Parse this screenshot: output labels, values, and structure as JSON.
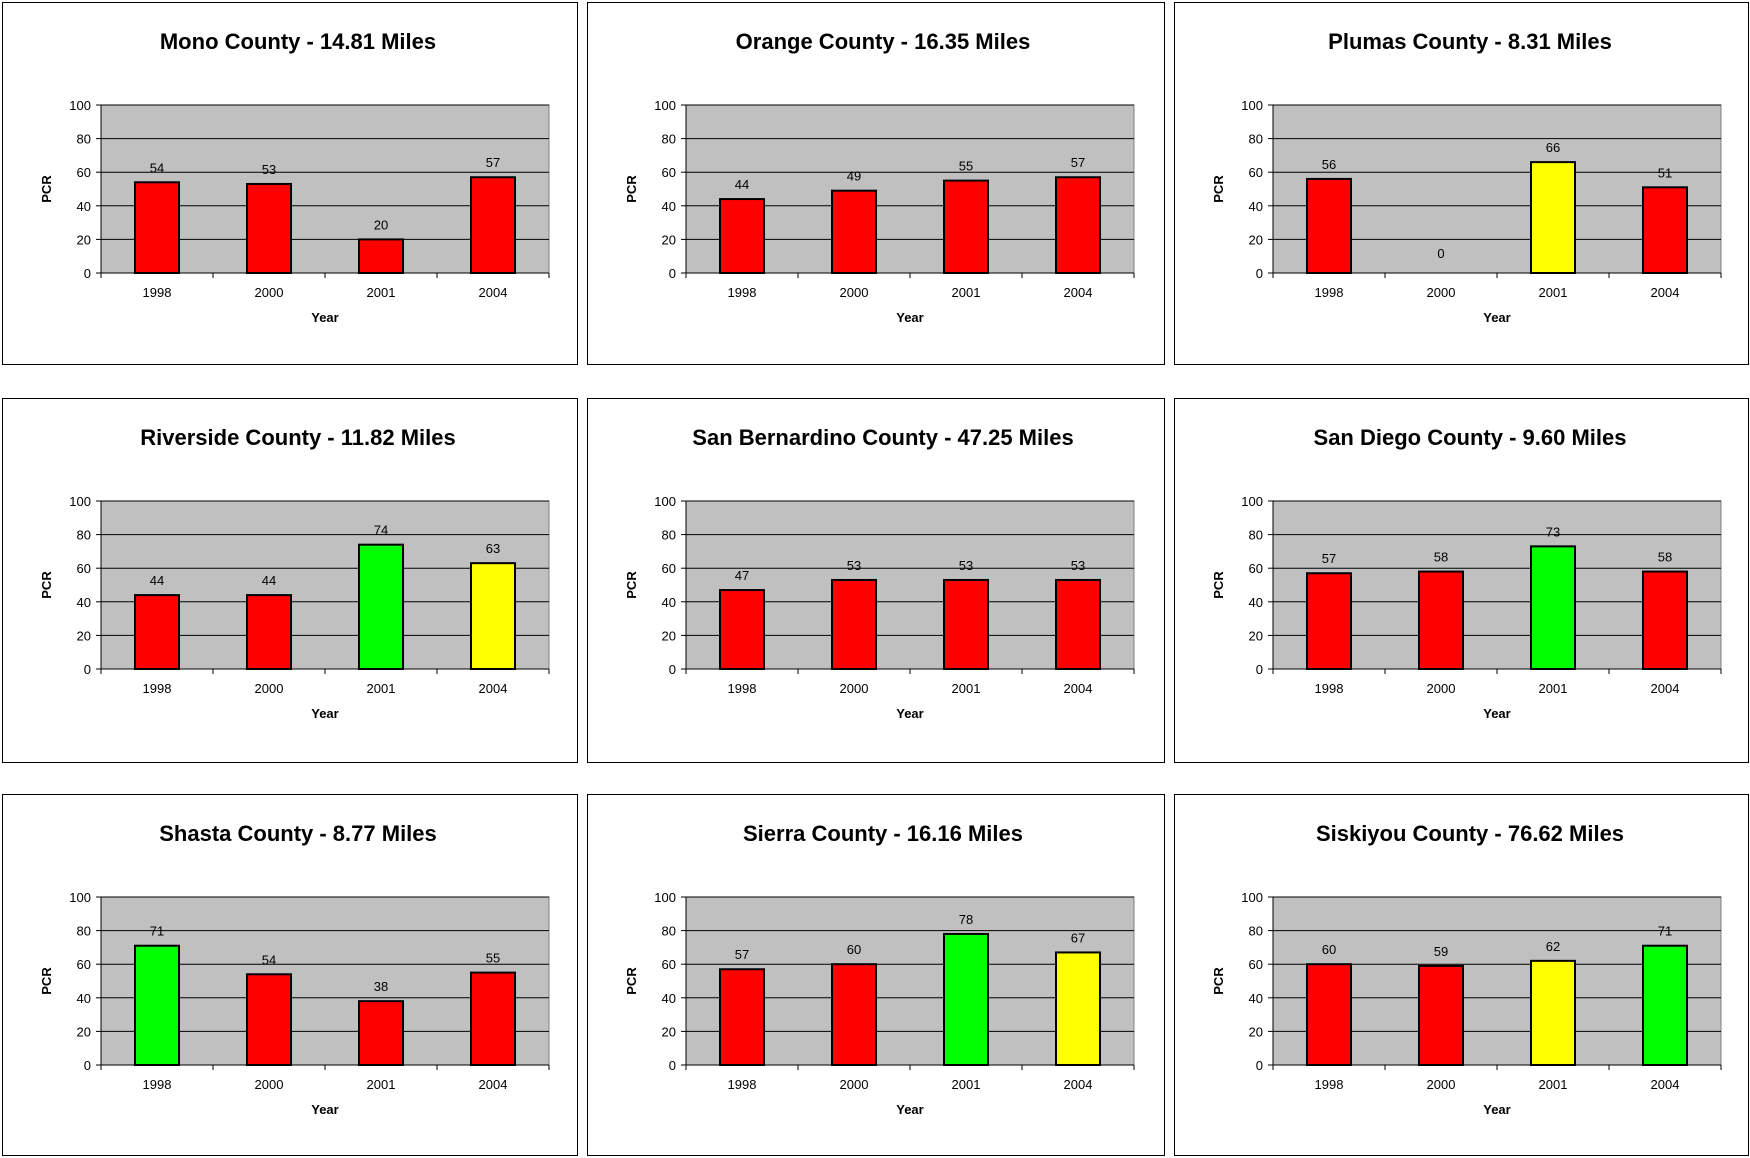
{
  "colors": {
    "red": "#ff0000",
    "green": "#00ff00",
    "yellow": "#ffff00",
    "plot_area": "#c0c0c0"
  },
  "chart_data": [
    {
      "type": "bar",
      "title": "Mono County - 14.81 Miles",
      "categories": [
        "1998",
        "2000",
        "2001",
        "2004"
      ],
      "values": [
        54,
        53,
        20,
        57
      ],
      "bar_colors": [
        "red",
        "red",
        "red",
        "red"
      ],
      "xlabel": "Year",
      "ylabel": "PCR",
      "ylim": [
        0,
        100
      ],
      "yticks": [
        0,
        20,
        40,
        60,
        80,
        100
      ],
      "grid": true
    },
    {
      "type": "bar",
      "title": "Orange County - 16.35 Miles",
      "categories": [
        "1998",
        "2000",
        "2001",
        "2004"
      ],
      "values": [
        44,
        49,
        55,
        57
      ],
      "bar_colors": [
        "red",
        "red",
        "red",
        "red"
      ],
      "xlabel": "Year",
      "ylabel": "PCR",
      "ylim": [
        0,
        100
      ],
      "yticks": [
        0,
        20,
        40,
        60,
        80,
        100
      ],
      "grid": true
    },
    {
      "type": "bar",
      "title": "Plumas County - 8.31 Miles",
      "categories": [
        "1998",
        "2000",
        "2001",
        "2004"
      ],
      "values": [
        56,
        0,
        66,
        51
      ],
      "bar_colors": [
        "red",
        "red",
        "yellow",
        "red"
      ],
      "xlabel": "Year",
      "ylabel": "PCR",
      "ylim": [
        0,
        100
      ],
      "yticks": [
        0,
        20,
        40,
        60,
        80,
        100
      ],
      "grid": true
    },
    {
      "type": "bar",
      "title": "Riverside County - 11.82 Miles",
      "categories": [
        "1998",
        "2000",
        "2001",
        "2004"
      ],
      "values": [
        44,
        44,
        74,
        63
      ],
      "bar_colors": [
        "red",
        "red",
        "green",
        "yellow"
      ],
      "xlabel": "Year",
      "ylabel": "PCR",
      "ylim": [
        0,
        100
      ],
      "yticks": [
        0,
        20,
        40,
        60,
        80,
        100
      ],
      "grid": true
    },
    {
      "type": "bar",
      "title": "San Bernardino County - 47.25 Miles",
      "categories": [
        "1998",
        "2000",
        "2001",
        "2004"
      ],
      "values": [
        47,
        53,
        53,
        53
      ],
      "bar_colors": [
        "red",
        "red",
        "red",
        "red"
      ],
      "xlabel": "Year",
      "ylabel": "PCR",
      "ylim": [
        0,
        100
      ],
      "yticks": [
        0,
        20,
        40,
        60,
        80,
        100
      ],
      "grid": true
    },
    {
      "type": "bar",
      "title": "San Diego County - 9.60 Miles",
      "categories": [
        "1998",
        "2000",
        "2001",
        "2004"
      ],
      "values": [
        57,
        58,
        73,
        58
      ],
      "bar_colors": [
        "red",
        "red",
        "green",
        "red"
      ],
      "xlabel": "Year",
      "ylabel": "PCR",
      "ylim": [
        0,
        100
      ],
      "yticks": [
        0,
        20,
        40,
        60,
        80,
        100
      ],
      "grid": true
    },
    {
      "type": "bar",
      "title": "Shasta County - 8.77 Miles",
      "categories": [
        "1998",
        "2000",
        "2001",
        "2004"
      ],
      "values": [
        71,
        54,
        38,
        55
      ],
      "bar_colors": [
        "green",
        "red",
        "red",
        "red"
      ],
      "xlabel": "Year",
      "ylabel": "PCR",
      "ylim": [
        0,
        100
      ],
      "yticks": [
        0,
        20,
        40,
        60,
        80,
        100
      ],
      "grid": true
    },
    {
      "type": "bar",
      "title": "Sierra County - 16.16 Miles",
      "categories": [
        "1998",
        "2000",
        "2001",
        "2004"
      ],
      "values": [
        57,
        60,
        78,
        67
      ],
      "bar_colors": [
        "red",
        "red",
        "green",
        "yellow"
      ],
      "xlabel": "Year",
      "ylabel": "PCR",
      "ylim": [
        0,
        100
      ],
      "yticks": [
        0,
        20,
        40,
        60,
        80,
        100
      ],
      "grid": true
    },
    {
      "type": "bar",
      "title": "Siskiyou County - 76.62 Miles",
      "categories": [
        "1998",
        "2000",
        "2001",
        "2004"
      ],
      "values": [
        60,
        59,
        62,
        71
      ],
      "bar_colors": [
        "red",
        "red",
        "yellow",
        "green"
      ],
      "xlabel": "Year",
      "ylabel": "PCR",
      "ylim": [
        0,
        100
      ],
      "yticks": [
        0,
        20,
        40,
        60,
        80,
        100
      ],
      "grid": true
    }
  ]
}
